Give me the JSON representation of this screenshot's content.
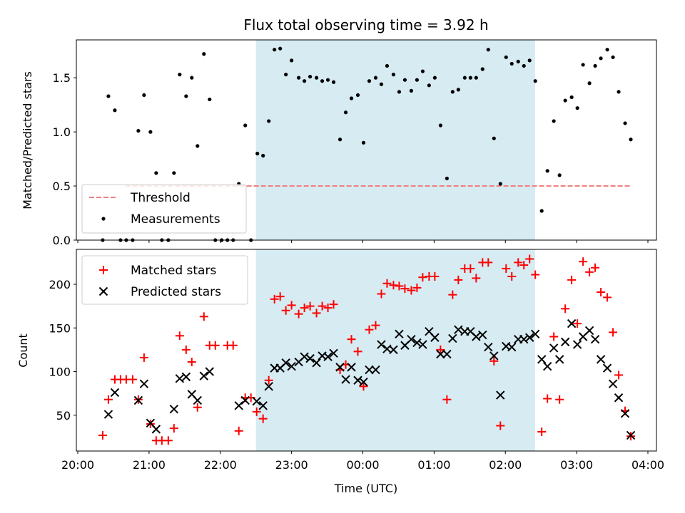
{
  "title": "Flux total observing time = 3.92 h",
  "colors": {
    "shade": "#add8e6",
    "threshold": "#f08080",
    "matched": "#ff0000",
    "predicted": "#000000",
    "measurement": "#000000"
  },
  "chart_data": [
    {
      "type": "scatter",
      "panel": "top",
      "title": "Flux total observing time = 3.92 h",
      "xlabel": "",
      "ylabel": "Matched/Predicted stars",
      "x_unit": "hours since 20:00 UTC",
      "xlim": [
        -0.02,
        8.12
      ],
      "ylim": [
        0,
        1.85
      ],
      "yticks": [
        0.0,
        0.5,
        1.0,
        1.5
      ],
      "ytick_labels": [
        "0.0",
        "0.5",
        "1.0",
        "1.5"
      ],
      "shaded_interval": [
        "22:30",
        "02:25"
      ],
      "legend": {
        "placement": "lower left",
        "entries": [
          "Threshold",
          "Measurements"
        ]
      },
      "threshold": {
        "name": "Threshold",
        "y": 0.5,
        "x_range": [
          "20:40",
          "03:45"
        ]
      },
      "series": [
        {
          "name": "Measurements",
          "marker": "dot",
          "points": [
            [
              0.35,
              0.0
            ],
            [
              0.43,
              1.33
            ],
            [
              0.52,
              1.2
            ],
            [
              0.6,
              0.0
            ],
            [
              0.68,
              0.0
            ],
            [
              0.77,
              0.0
            ],
            [
              0.85,
              1.01
            ],
            [
              0.93,
              1.34
            ],
            [
              1.02,
              1.0
            ],
            [
              1.1,
              0.62
            ],
            [
              1.18,
              0.0
            ],
            [
              1.27,
              0.0
            ],
            [
              1.35,
              0.62
            ],
            [
              1.43,
              1.53
            ],
            [
              1.52,
              1.33
            ],
            [
              1.6,
              1.5
            ],
            [
              1.68,
              0.87
            ],
            [
              1.77,
              1.72
            ],
            [
              1.85,
              1.3
            ],
            [
              1.93,
              0.0
            ],
            [
              2.02,
              0.0
            ],
            [
              2.1,
              0.0
            ],
            [
              2.18,
              0.0
            ],
            [
              2.26,
              0.52
            ],
            [
              2.35,
              1.06
            ],
            [
              2.43,
              0.0
            ],
            [
              2.52,
              0.8
            ],
            [
              2.6,
              0.78
            ],
            [
              2.68,
              1.1
            ],
            [
              2.76,
              1.76
            ],
            [
              2.84,
              1.77
            ],
            [
              2.92,
              1.53
            ],
            [
              3.0,
              1.66
            ],
            [
              3.1,
              1.5
            ],
            [
              3.18,
              1.47
            ],
            [
              3.26,
              1.51
            ],
            [
              3.35,
              1.5
            ],
            [
              3.43,
              1.47
            ],
            [
              3.51,
              1.48
            ],
            [
              3.59,
              1.46
            ],
            [
              3.68,
              0.93
            ],
            [
              3.76,
              1.18
            ],
            [
              3.84,
              1.31
            ],
            [
              3.93,
              1.34
            ],
            [
              4.01,
              0.9
            ],
            [
              4.09,
              1.47
            ],
            [
              4.18,
              1.5
            ],
            [
              4.26,
              1.44
            ],
            [
              4.34,
              1.61
            ],
            [
              4.43,
              1.53
            ],
            [
              4.51,
              1.37
            ],
            [
              4.59,
              1.48
            ],
            [
              4.68,
              1.38
            ],
            [
              4.76,
              1.48
            ],
            [
              4.84,
              1.56
            ],
            [
              4.93,
              1.43
            ],
            [
              5.01,
              1.5
            ],
            [
              5.09,
              1.06
            ],
            [
              5.18,
              0.57
            ],
            [
              5.26,
              1.37
            ],
            [
              5.34,
              1.39
            ],
            [
              5.43,
              1.5
            ],
            [
              5.51,
              1.5
            ],
            [
              5.59,
              1.5
            ],
            [
              5.68,
              1.58
            ],
            [
              5.76,
              1.76
            ],
            [
              5.84,
              0.94
            ],
            [
              5.93,
              0.52
            ],
            [
              6.01,
              1.69
            ],
            [
              6.09,
              1.63
            ],
            [
              6.18,
              1.65
            ],
            [
              6.26,
              1.61
            ],
            [
              6.34,
              1.66
            ],
            [
              6.42,
              1.47
            ],
            [
              6.51,
              0.27
            ],
            [
              6.59,
              0.64
            ],
            [
              6.68,
              1.1
            ],
            [
              6.76,
              0.6
            ],
            [
              6.84,
              1.29
            ],
            [
              6.93,
              1.32
            ],
            [
              7.01,
              1.22
            ],
            [
              7.09,
              1.62
            ],
            [
              7.18,
              1.45
            ],
            [
              7.26,
              1.61
            ],
            [
              7.34,
              1.68
            ],
            [
              7.43,
              1.76
            ],
            [
              7.51,
              1.69
            ],
            [
              7.59,
              1.37
            ],
            [
              7.68,
              1.08
            ],
            [
              7.76,
              0.93
            ]
          ]
        }
      ]
    },
    {
      "type": "scatter",
      "panel": "bottom",
      "xlabel": "Time (UTC)",
      "ylabel": "Count",
      "x_unit": "hours since 20:00 UTC",
      "xlim": [
        -0.02,
        8.12
      ],
      "ylim": [
        9,
        240
      ],
      "xticks": [
        0,
        1,
        2,
        3,
        4,
        5,
        6,
        7,
        8
      ],
      "xtick_labels": [
        "20:00",
        "21:00",
        "22:00",
        "23:00",
        "00:00",
        "01:00",
        "02:00",
        "03:00",
        "04:00"
      ],
      "yticks": [
        50,
        100,
        150,
        200
      ],
      "ytick_labels": [
        "50",
        "100",
        "150",
        "200"
      ],
      "shaded_interval": [
        "22:30",
        "02:25"
      ],
      "legend": {
        "placement": "upper left",
        "entries": [
          "Matched stars",
          "Predicted stars"
        ]
      },
      "series": [
        {
          "name": "Matched stars",
          "marker": "+",
          "points": [
            [
              0.35,
              27
            ],
            [
              0.43,
              68
            ],
            [
              0.52,
              91
            ],
            [
              0.6,
              91
            ],
            [
              0.68,
              91
            ],
            [
              0.77,
              91
            ],
            [
              0.85,
              68
            ],
            [
              0.93,
              116
            ],
            [
              1.02,
              40
            ],
            [
              1.1,
              21
            ],
            [
              1.18,
              21
            ],
            [
              1.27,
              21
            ],
            [
              1.35,
              35
            ],
            [
              1.43,
              141
            ],
            [
              1.52,
              125
            ],
            [
              1.6,
              111
            ],
            [
              1.68,
              59
            ],
            [
              1.77,
              163
            ],
            [
              1.85,
              130
            ],
            [
              1.93,
              130
            ],
            [
              2.1,
              130
            ],
            [
              2.18,
              130
            ],
            [
              2.26,
              32
            ],
            [
              2.35,
              70
            ],
            [
              2.43,
              70
            ],
            [
              2.51,
              54
            ],
            [
              2.6,
              46
            ],
            [
              2.68,
              90
            ],
            [
              2.76,
              183
            ],
            [
              2.84,
              186
            ],
            [
              2.92,
              170
            ],
            [
              3.0,
              176
            ],
            [
              3.1,
              166
            ],
            [
              3.18,
              173
            ],
            [
              3.26,
              175
            ],
            [
              3.35,
              167
            ],
            [
              3.43,
              175
            ],
            [
              3.51,
              173
            ],
            [
              3.59,
              177
            ],
            [
              3.68,
              102
            ],
            [
              3.76,
              108
            ],
            [
              3.84,
              137
            ],
            [
              3.93,
              123
            ],
            [
              4.01,
              83
            ],
            [
              4.09,
              148
            ],
            [
              4.18,
              153
            ],
            [
              4.26,
              189
            ],
            [
              4.34,
              201
            ],
            [
              4.43,
              199
            ],
            [
              4.51,
              198
            ],
            [
              4.59,
              195
            ],
            [
              4.68,
              193
            ],
            [
              4.76,
              196
            ],
            [
              4.84,
              208
            ],
            [
              4.93,
              209
            ],
            [
              5.01,
              209
            ],
            [
              5.09,
              125
            ],
            [
              5.18,
              68
            ],
            [
              5.26,
              188
            ],
            [
              5.34,
              205
            ],
            [
              5.43,
              218
            ],
            [
              5.51,
              218
            ],
            [
              5.59,
              207
            ],
            [
              5.68,
              225
            ],
            [
              5.76,
              225
            ],
            [
              5.84,
              112
            ],
            [
              5.93,
              38
            ],
            [
              6.01,
              218
            ],
            [
              6.09,
              209
            ],
            [
              6.18,
              225
            ],
            [
              6.26,
              222
            ],
            [
              6.34,
              229
            ],
            [
              6.42,
              211
            ],
            [
              6.51,
              31
            ],
            [
              6.59,
              69
            ],
            [
              6.68,
              140
            ],
            [
              6.76,
              68
            ],
            [
              6.84,
              172
            ],
            [
              6.93,
              205
            ],
            [
              7.01,
              155
            ],
            [
              7.09,
              226
            ],
            [
              7.18,
              214
            ],
            [
              7.26,
              219
            ],
            [
              7.34,
              191
            ],
            [
              7.43,
              185
            ],
            [
              7.51,
              145
            ],
            [
              7.59,
              96
            ],
            [
              7.68,
              55
            ],
            [
              7.76,
              26
            ]
          ]
        },
        {
          "name": "Predicted stars",
          "marker": "x",
          "points": [
            [
              0.43,
              51
            ],
            [
              0.52,
              76
            ],
            [
              0.85,
              67
            ],
            [
              0.93,
              86
            ],
            [
              1.02,
              41
            ],
            [
              1.1,
              34
            ],
            [
              1.35,
              57
            ],
            [
              1.43,
              92
            ],
            [
              1.52,
              94
            ],
            [
              1.6,
              74
            ],
            [
              1.68,
              67
            ],
            [
              1.77,
              95
            ],
            [
              1.85,
              100
            ],
            [
              2.26,
              61
            ],
            [
              2.35,
              67
            ],
            [
              2.51,
              66
            ],
            [
              2.6,
              61
            ],
            [
              2.68,
              83
            ],
            [
              2.76,
              104
            ],
            [
              2.84,
              104
            ],
            [
              2.92,
              110
            ],
            [
              3.0,
              106
            ],
            [
              3.1,
              111
            ],
            [
              3.18,
              117
            ],
            [
              3.26,
              115
            ],
            [
              3.35,
              110
            ],
            [
              3.43,
              118
            ],
            [
              3.51,
              117
            ],
            [
              3.59,
              121
            ],
            [
              3.68,
              105
            ],
            [
              3.76,
              91
            ],
            [
              3.84,
              105
            ],
            [
              3.93,
              90
            ],
            [
              4.01,
              88
            ],
            [
              4.09,
              102
            ],
            [
              4.18,
              102
            ],
            [
              4.26,
              131
            ],
            [
              4.34,
              126
            ],
            [
              4.43,
              125
            ],
            [
              4.51,
              143
            ],
            [
              4.59,
              130
            ],
            [
              4.68,
              137
            ],
            [
              4.76,
              133
            ],
            [
              4.84,
              131
            ],
            [
              4.93,
              146
            ],
            [
              5.01,
              139
            ],
            [
              5.09,
              120
            ],
            [
              5.18,
              120
            ],
            [
              5.26,
              138
            ],
            [
              5.34,
              148
            ],
            [
              5.43,
              146
            ],
            [
              5.51,
              146
            ],
            [
              5.59,
              140
            ],
            [
              5.68,
              142
            ],
            [
              5.76,
              128
            ],
            [
              5.84,
              118
            ],
            [
              5.93,
              73
            ],
            [
              6.01,
              129
            ],
            [
              6.09,
              128
            ],
            [
              6.18,
              137
            ],
            [
              6.26,
              137
            ],
            [
              6.34,
              139
            ],
            [
              6.42,
              143
            ],
            [
              6.51,
              114
            ],
            [
              6.59,
              106
            ],
            [
              6.68,
              127
            ],
            [
              6.76,
              114
            ],
            [
              6.84,
              134
            ],
            [
              6.93,
              155
            ],
            [
              7.01,
              131
            ],
            [
              7.09,
              140
            ],
            [
              7.18,
              147
            ],
            [
              7.26,
              137
            ],
            [
              7.34,
              114
            ],
            [
              7.43,
              104
            ],
            [
              7.51,
              86
            ],
            [
              7.59,
              70
            ],
            [
              7.68,
              52
            ],
            [
              7.76,
              27
            ]
          ]
        }
      ]
    }
  ]
}
